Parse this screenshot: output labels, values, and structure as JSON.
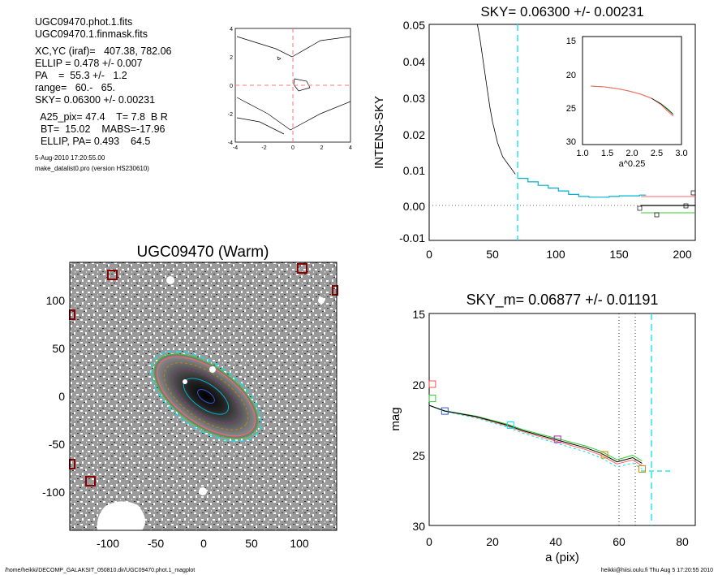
{
  "header": {
    "lines1": [
      "UGC09470.phot.1.fits",
      "UGC09470.1.finmask.fits"
    ],
    "lines2": [
      "XC,YC (iraf)=   407.38, 782.06",
      "ELLIP = 0.478 +/- 0.007",
      "PA    =  55.3 +/-   1.2",
      "range=   60.-   65.",
      "SKY= 0.06300 +/- 0.00231"
    ],
    "lines3": [
      "  A25_pix= 47.4    T= 7.8  B R",
      "  BT=  15.02    MABS=-17.96",
      "  ELLIP, PA= 0.493    64.5"
    ],
    "date": "5-Aug-2010 17:20:55.00",
    "program": "make_datalist0.pro (version HS230610)"
  },
  "footer": {
    "path": "/home/heikki/DECOMP_GALAKSIT_050810.dir/UGC09470.phot.1_magplot",
    "user": "heikki@hiisi.oulu.fi  Thu Aug  5 17:20:55 2010"
  },
  "colors": {
    "cyan": "#00e5ee",
    "red": "#ff5050",
    "green": "#33cc33",
    "blue": "#3355cc",
    "magenta": "#aa22aa",
    "orange": "#cc8800",
    "darkred": "#880000"
  },
  "chart_data": [
    {
      "type": "contour",
      "xlim": [
        -4,
        4
      ],
      "ylim": [
        -4,
        4
      ],
      "xticks": [
        "-4",
        "-2",
        "0",
        "2",
        "4"
      ],
      "yticks": [
        "4",
        "2",
        "0",
        "-2",
        "-4"
      ]
    },
    {
      "type": "line",
      "title": "SKY= 0.06300 +/- 0.00231",
      "xlabel": "",
      "ylabel": "INTENS-SKY",
      "xlim": [
        0,
        210
      ],
      "ylim": [
        -0.012,
        0.05
      ],
      "xticks": [
        "0",
        "50",
        "100",
        "150",
        "200"
      ],
      "yticks": [
        "0.05",
        "0.04",
        "0.03",
        "0.02",
        "0.01",
        "0.00",
        "-0.01"
      ],
      "vline_x": 70,
      "profile": [
        [
          38,
          0.05
        ],
        [
          40,
          0.046
        ],
        [
          42,
          0.041
        ],
        [
          44,
          0.036
        ],
        [
          46,
          0.031
        ],
        [
          48,
          0.026
        ],
        [
          50,
          0.022
        ],
        [
          52,
          0.019
        ],
        [
          54,
          0.016
        ],
        [
          56,
          0.014
        ],
        [
          58,
          0.012
        ],
        [
          60,
          0.011
        ],
        [
          62,
          0.01
        ],
        [
          64,
          0.009
        ],
        [
          66,
          0.008
        ],
        [
          68,
          0.007
        ]
      ],
      "sky_steps": [
        [
          70,
          0.0058
        ],
        [
          78,
          0.0048
        ],
        [
          86,
          0.0038
        ],
        [
          94,
          0.003
        ],
        [
          102,
          0.0022
        ],
        [
          110,
          0.0012
        ],
        [
          118,
          0.0006
        ],
        [
          126,
          0.0004
        ],
        [
          134,
          0.0004
        ],
        [
          142,
          0.0006
        ],
        [
          150,
          0.0008
        ],
        [
          158,
          0.0008
        ],
        [
          166,
          0.001
        ]
      ],
      "inset": {
        "xlabel": "a^0.25",
        "xlim": [
          1.0,
          3.0
        ],
        "ylim": [
          15,
          30
        ],
        "xticks": [
          "1.0",
          "1.5",
          "2.0",
          "2.5",
          "3.0"
        ],
        "yticks": [
          "15",
          "20",
          "25",
          "30"
        ]
      }
    },
    {
      "type": "image",
      "title": "UGC09470 (Warm)",
      "xlim": [
        -140,
        140
      ],
      "ylim": [
        -140,
        140
      ],
      "xticks": [
        "-100",
        "-50",
        "0",
        "50",
        "100"
      ],
      "yticks": [
        "100",
        "50",
        "0",
        "-50",
        "-100"
      ]
    },
    {
      "type": "line",
      "title": "SKY_m=  0.06877 +/- 0.01191",
      "xlabel": "a (pix)",
      "ylabel": "mag",
      "xlim": [
        0,
        85
      ],
      "ylim": [
        15,
        30
      ],
      "xticks": [
        "0",
        "20",
        "40",
        "60",
        "80"
      ],
      "yticks": [
        "15",
        "20",
        "25",
        "30"
      ],
      "vlines_dotted": [
        60,
        65
      ],
      "vline_dashed": 70,
      "profile": [
        [
          0,
          21.5
        ],
        [
          5,
          21.9
        ],
        [
          10,
          22.1
        ],
        [
          15,
          22.3
        ],
        [
          20,
          22.6
        ],
        [
          25,
          22.9
        ],
        [
          30,
          23.3
        ],
        [
          35,
          23.6
        ],
        [
          40,
          23.9
        ],
        [
          45,
          24.2
        ],
        [
          50,
          24.5
        ],
        [
          55,
          24.9
        ],
        [
          60,
          25.5
        ],
        [
          65,
          25.2
        ],
        [
          68,
          25.6
        ]
      ],
      "markers": [
        {
          "x": 1,
          "y": 20,
          "color": "red"
        },
        {
          "x": 1,
          "y": 21,
          "color": "green"
        },
        {
          "x": 5,
          "y": 21.9,
          "color": "blue"
        },
        {
          "x": 26,
          "y": 22.9,
          "color": "cyan"
        },
        {
          "x": 41,
          "y": 23.9,
          "color": "magenta"
        },
        {
          "x": 56,
          "y": 25,
          "color": "orange"
        },
        {
          "x": 68,
          "y": 26,
          "color": "orange"
        }
      ]
    }
  ]
}
